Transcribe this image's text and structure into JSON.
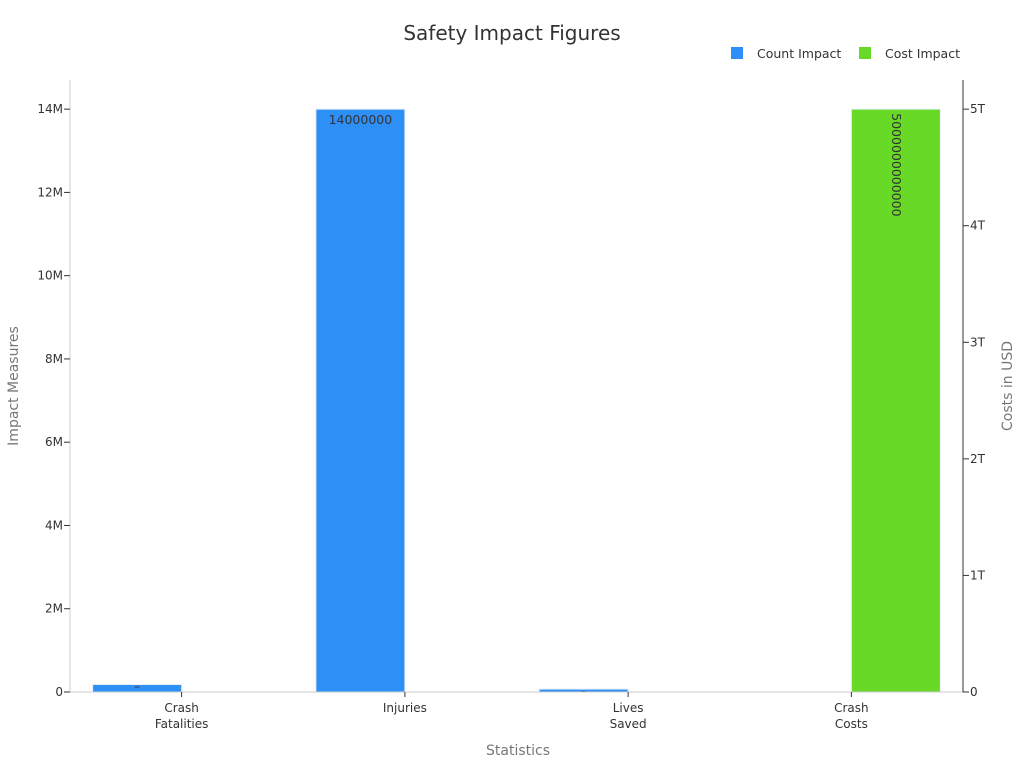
{
  "chart_data": {
    "type": "bar",
    "title": "Safety Impact Figures",
    "xlabel": "Statistics",
    "ylabel": "Impact Measures",
    "y2label": "Costs in USD",
    "categories": [
      [
        "Crash",
        "Fatalities"
      ],
      [
        "Injuries"
      ],
      [
        "Lives",
        "Saved"
      ],
      [
        "Crash",
        "Costs"
      ]
    ],
    "ylim": [
      0,
      14700000
    ],
    "y2lim": [
      0,
      5250000000000
    ],
    "yticks": [
      {
        "value": 0,
        "label": "0"
      },
      {
        "value": 2000000,
        "label": "2M"
      },
      {
        "value": 4000000,
        "label": "4M"
      },
      {
        "value": 6000000,
        "label": "6M"
      },
      {
        "value": 8000000,
        "label": "8M"
      },
      {
        "value": 10000000,
        "label": "10M"
      },
      {
        "value": 12000000,
        "label": "12M"
      },
      {
        "value": 14000000,
        "label": "14M"
      }
    ],
    "y2ticks": [
      {
        "value": 0,
        "label": "0"
      },
      {
        "value": 1000000000000,
        "label": "1T"
      },
      {
        "value": 2000000000000,
        "label": "2T"
      },
      {
        "value": 3000000000000,
        "label": "3T"
      },
      {
        "value": 4000000000000,
        "label": "4T"
      },
      {
        "value": 5000000000000,
        "label": "5T"
      }
    ],
    "series": [
      {
        "name": "Count Impact",
        "axis": "left",
        "color": "#2e90f7",
        "values": [
          180000,
          14000000,
          70000,
          null
        ],
        "labels": [
          "–",
          "14000000",
          "–",
          ""
        ]
      },
      {
        "name": "Cost Impact",
        "axis": "right",
        "color": "#68d926",
        "values": [
          null,
          null,
          null,
          5000000000000
        ],
        "labels": [
          "",
          "",
          "",
          "5000000000000"
        ]
      }
    ],
    "legend": "top-right",
    "grid": false
  }
}
